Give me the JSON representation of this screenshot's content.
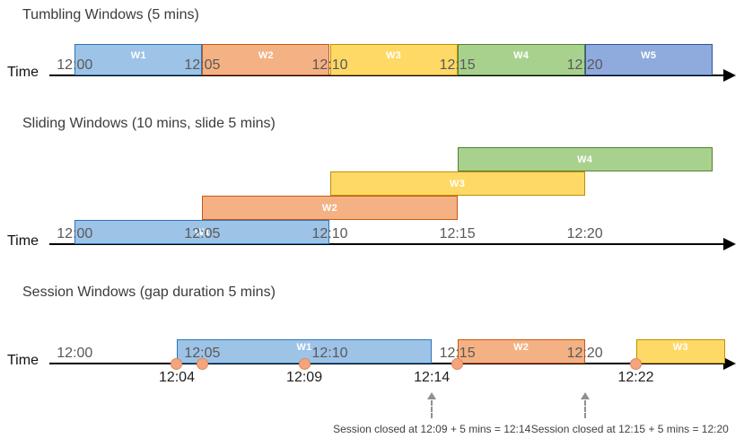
{
  "diagram": {
    "axis_label": "Time",
    "tick_labels": [
      "12:00",
      "12:05",
      "12:10",
      "12:15",
      "12:20"
    ],
    "colors": {
      "blue_fill": "#9DC3E6",
      "blue_border": "#2E75B6",
      "orange_fill": "#F4B183",
      "orange_border": "#C55A11",
      "gold_fill": "#FFD966",
      "gold_border": "#BF9000",
      "green_fill": "#A9D18E",
      "green_border": "#538135",
      "blue2_fill": "#8FAADC",
      "blue2_border": "#2F5597",
      "event_dot": "#F4A57E",
      "axis": "#000000"
    },
    "sections": [
      {
        "id": "tumbling",
        "title": "Tumbling Windows (5 mins)",
        "windows": [
          {
            "label": "W1",
            "start_min": 0,
            "end_min": 5,
            "row": 0,
            "fill": "#9DC3E6",
            "border": "#2E75B6"
          },
          {
            "label": "W2",
            "start_min": 5,
            "end_min": 10,
            "row": 0,
            "fill": "#F4B183",
            "border": "#C55A11"
          },
          {
            "label": "W3",
            "start_min": 10,
            "end_min": 15,
            "row": 0,
            "fill": "#FFD966",
            "border": "#BF9000"
          },
          {
            "label": "W4",
            "start_min": 15,
            "end_min": 20,
            "row": 0,
            "fill": "#A9D18E",
            "border": "#538135"
          },
          {
            "label": "W5",
            "start_min": 20,
            "end_min": 25,
            "row": 0,
            "fill": "#8FAADC",
            "border": "#2F5597"
          }
        ]
      },
      {
        "id": "sliding",
        "title": "Sliding Windows (10 mins, slide 5 mins)",
        "windows": [
          {
            "label": "W1",
            "start_min": 0,
            "end_min": 10,
            "row": 0,
            "fill": "#9DC3E6",
            "border": "#2E75B6"
          },
          {
            "label": "W2",
            "start_min": 5,
            "end_min": 15,
            "row": 1,
            "fill": "#F4B183",
            "border": "#C55A11"
          },
          {
            "label": "W3",
            "start_min": 10,
            "end_min": 20,
            "row": 2,
            "fill": "#FFD966",
            "border": "#BF9000"
          },
          {
            "label": "W4",
            "start_min": 15,
            "end_min": 25,
            "row": 3,
            "fill": "#A9D18E",
            "border": "#538135"
          }
        ]
      },
      {
        "id": "session",
        "title": "Session Windows (gap duration 5 mins)",
        "windows": [
          {
            "label": "W1",
            "start_min": 4,
            "end_min": 14,
            "row": 0,
            "fill": "#9DC3E6",
            "border": "#2E75B6"
          },
          {
            "label": "W2",
            "start_min": 15,
            "end_min": 20,
            "row": 0,
            "fill": "#F4B183",
            "border": "#C55A11"
          },
          {
            "label": "W3",
            "start_min": 22,
            "end_min": 25.5,
            "row": 0,
            "fill": "#FFD966",
            "border": "#BF9000"
          }
        ],
        "events": [
          {
            "min": 4,
            "dot": true,
            "label": "12:04"
          },
          {
            "min": 5,
            "dot": true,
            "label": ""
          },
          {
            "min": 9,
            "dot": true,
            "label": "12:09"
          },
          {
            "min": 14,
            "dot": false,
            "label": "12:14"
          },
          {
            "min": 15,
            "dot": true,
            "label": ""
          },
          {
            "min": 22,
            "dot": true,
            "label": "12:22"
          }
        ],
        "annotations": [
          {
            "text": "Session closed at 12:09 + 5 mins = 12:14",
            "arrow_min": 14,
            "align": "center"
          },
          {
            "text": "Session closed at 12:15 + 5 mins = 12:20",
            "arrow_min": 20,
            "align": "left"
          }
        ]
      }
    ]
  }
}
